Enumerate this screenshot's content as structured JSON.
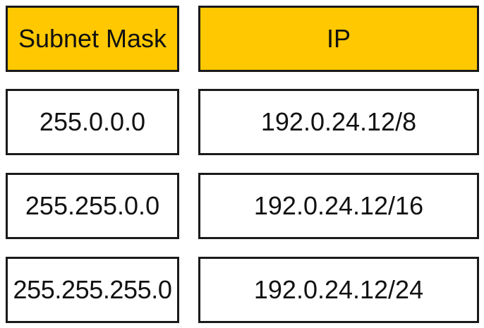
{
  "header": {
    "subnet_mask": "Subnet Mask",
    "ip": "IP"
  },
  "rows": [
    {
      "subnet_mask": "255.0.0.0",
      "ip": "192.0.24.12/8"
    },
    {
      "subnet_mask": "255.255.0.0",
      "ip": "192.0.24.12/16"
    },
    {
      "subnet_mask": "255.255.255.0",
      "ip": "192.0.24.12/24"
    }
  ],
  "colors": {
    "header_fill": "#ffc800",
    "cell_fill": "#ffffff",
    "border": "#1a1a1a",
    "text": "#111111"
  }
}
